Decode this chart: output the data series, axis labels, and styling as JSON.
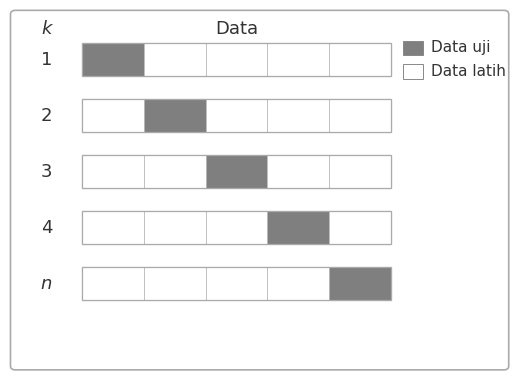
{
  "rows": [
    {
      "label": "1",
      "test_segment": 0,
      "italic": false
    },
    {
      "label": "2",
      "test_segment": 1,
      "italic": false
    },
    {
      "label": "3",
      "test_segment": 2,
      "italic": false
    },
    {
      "label": "4",
      "test_segment": 3,
      "italic": false
    },
    {
      "label": "n",
      "test_segment": 4,
      "italic": true
    }
  ],
  "n_segments": 5,
  "col_header": "Data",
  "row_header": "k",
  "test_color": "#7f7f7f",
  "train_color": "#ffffff",
  "segment_border_color": "#bbbbbb",
  "outer_border_color": "#aaaaaa",
  "legend_test_label": "Data uji",
  "legend_train_label": "Data latih",
  "fig_bg_color": "#ffffff",
  "outer_rect_bg": "#ffffff",
  "fig_border_color": "#aaaaaa",
  "label_color": "#333333",
  "header_fontsize": 13,
  "label_fontsize": 13,
  "legend_fontsize": 11
}
